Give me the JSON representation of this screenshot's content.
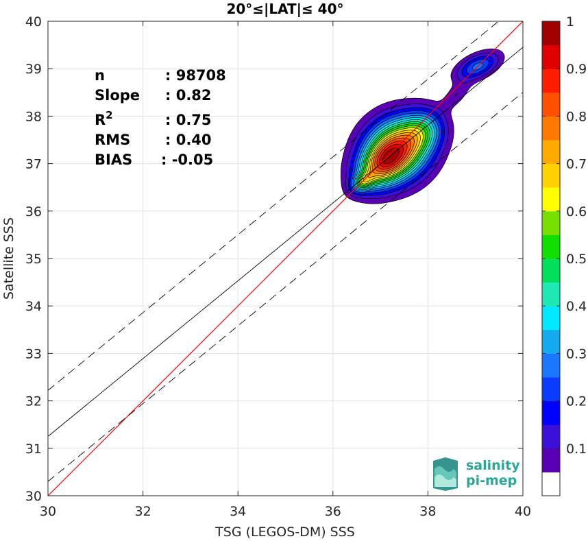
{
  "chart_data": {
    "type": "contour",
    "title": "20°≤|LAT|≤ 40°",
    "xlabel": "TSG (LEGOS-DM) SSS",
    "ylabel": "Satellite SSS",
    "xlim": [
      30,
      40
    ],
    "ylim": [
      30,
      40
    ],
    "xticks": [
      "30",
      "32",
      "34",
      "36",
      "38",
      "40"
    ],
    "yticks": [
      "30",
      "31",
      "32",
      "33",
      "34",
      "35",
      "36",
      "37",
      "38",
      "39",
      "40"
    ],
    "grid": true,
    "stats": [
      {
        "label": "n",
        "value": ": 98708"
      },
      {
        "label": "Slope",
        "value": ": 0.82"
      },
      {
        "label": "R",
        "sup": "2",
        "value": ": 0.75"
      },
      {
        "label": "RMS",
        "value": ": 0.40"
      },
      {
        "label": "BIAS",
        "value": ": -0.05"
      }
    ],
    "lines": {
      "identity": {
        "color": "#ff0000",
        "x": [
          30,
          40
        ],
        "y": [
          30,
          40
        ]
      },
      "fit": {
        "color": "#000000",
        "slope": 0.82,
        "intercept_at_30": 31.25
      },
      "fit_upper": {
        "style": "dashed",
        "intercept_at_30": 32.22
      },
      "fit_lower": {
        "style": "dashed",
        "intercept_at_30": 30.3
      }
    },
    "density_blobs": [
      {
        "cx": 37.35,
        "cy": 37.3,
        "sx": 0.48,
        "sy": 0.42,
        "angle_deg": 38,
        "peak": 1.0
      },
      {
        "cx": 36.95,
        "cy": 36.9,
        "sx": 0.38,
        "sy": 0.28,
        "angle_deg": 40,
        "peak": 0.55
      },
      {
        "cx": 36.62,
        "cy": 36.6,
        "sx": 0.18,
        "sy": 0.12,
        "angle_deg": 35,
        "peak": 0.4
      },
      {
        "cx": 37.9,
        "cy": 37.7,
        "sx": 0.32,
        "sy": 0.28,
        "angle_deg": 40,
        "peak": 0.35
      },
      {
        "cx": 39.05,
        "cy": 39.05,
        "sx": 0.33,
        "sy": 0.16,
        "angle_deg": 25,
        "peak": 0.34
      },
      {
        "cx": 38.6,
        "cy": 38.45,
        "sx": 0.25,
        "sy": 0.12,
        "angle_deg": 45,
        "peak": 0.12
      }
    ],
    "levels": [
      0.05,
      0.1,
      0.15,
      0.2,
      0.25,
      0.3,
      0.35,
      0.4,
      0.45,
      0.5,
      0.55,
      0.6,
      0.65,
      0.7,
      0.75,
      0.8,
      0.85,
      0.9,
      0.95
    ],
    "colorbar": {
      "range": [
        0,
        1
      ],
      "ticks": [
        "0.1",
        "0.2",
        "0.3",
        "0.4",
        "0.5",
        "0.6",
        "0.7",
        "0.8",
        "0.9",
        "1"
      ],
      "colors": [
        "#ffffff",
        "#5a00b4",
        "#3a10d8",
        "#0000ff",
        "#0a3cff",
        "#1a78ff",
        "#14aaf0",
        "#00e8ff",
        "#1ee8b4",
        "#00e05a",
        "#10e000",
        "#78e000",
        "#ffff00",
        "#ffd200",
        "#ffaa00",
        "#ff7800",
        "#ff5000",
        "#ff1e00",
        "#e00000",
        "#a00000"
      ]
    }
  },
  "logo": {
    "line1": "salinity",
    "line2": "pi-mep",
    "color": "#2aa596"
  }
}
